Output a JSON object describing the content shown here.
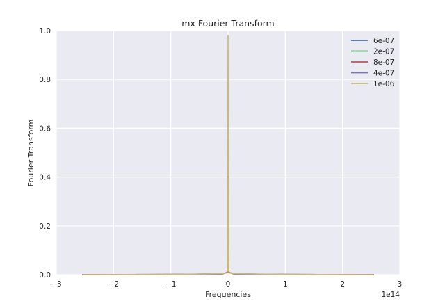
{
  "chart_data": {
    "type": "line",
    "title": "mx Fourier Transform",
    "xlabel": "Frequencies",
    "ylabel": "Fourier Transform",
    "x_offset_label": "1e14",
    "xlim": [
      -3,
      3
    ],
    "ylim": [
      0,
      1.0
    ],
    "x_scale_factor": "1e14",
    "xticks": [
      -3,
      -2,
      -1,
      0,
      1,
      2,
      3
    ],
    "xtick_labels": [
      "−3",
      "−2",
      "−1",
      "0",
      "1",
      "2",
      "3"
    ],
    "yticks": [
      0.0,
      0.2,
      0.4,
      0.6,
      0.8,
      1.0
    ],
    "ytick_labels": [
      "0.0",
      "0.2",
      "0.4",
      "0.6",
      "0.8",
      "1.0"
    ],
    "grid": true,
    "background": "#eaeaf2",
    "legend_position": "top-right",
    "series": [
      {
        "name": "6e-07",
        "color": "#4c72b0",
        "points": [
          [
            -2.55,
            0.0
          ],
          [
            -1.0,
            0.001
          ],
          [
            -0.1,
            0.003
          ],
          [
            -0.01,
            0.01
          ],
          [
            0.0,
            0.2
          ],
          [
            0.01,
            0.01
          ],
          [
            0.1,
            0.003
          ],
          [
            1.0,
            0.001
          ],
          [
            2.55,
            0.0
          ]
        ]
      },
      {
        "name": "2e-07",
        "color": "#55a868",
        "points": [
          [
            -2.55,
            0.0
          ],
          [
            -1.0,
            0.001
          ],
          [
            -0.1,
            0.003
          ],
          [
            -0.01,
            0.01
          ],
          [
            0.0,
            0.3
          ],
          [
            0.01,
            0.01
          ],
          [
            0.1,
            0.003
          ],
          [
            1.0,
            0.001
          ],
          [
            2.55,
            0.0
          ]
        ]
      },
      {
        "name": "8e-07",
        "color": "#c44e52",
        "points": [
          [
            -2.55,
            0.0
          ],
          [
            -1.0,
            0.001
          ],
          [
            -0.1,
            0.003
          ],
          [
            -0.01,
            0.01
          ],
          [
            0.0,
            0.5
          ],
          [
            0.01,
            0.01
          ],
          [
            0.1,
            0.003
          ],
          [
            1.0,
            0.001
          ],
          [
            2.55,
            0.0
          ]
        ]
      },
      {
        "name": "4e-07",
        "color": "#8172b2",
        "points": [
          [
            -2.55,
            0.0
          ],
          [
            -1.0,
            0.001
          ],
          [
            -0.1,
            0.003
          ],
          [
            -0.01,
            0.01
          ],
          [
            0.0,
            0.7
          ],
          [
            0.01,
            0.01
          ],
          [
            0.1,
            0.003
          ],
          [
            1.0,
            0.001
          ],
          [
            2.55,
            0.0
          ]
        ]
      },
      {
        "name": "1e-06",
        "color": "#ccb974",
        "points": [
          [
            -2.55,
            0.0
          ],
          [
            -1.0,
            0.001
          ],
          [
            -0.1,
            0.004
          ],
          [
            -0.02,
            0.008
          ],
          [
            -0.01,
            0.015
          ],
          [
            0.0,
            0.98
          ],
          [
            0.01,
            0.015
          ],
          [
            0.02,
            0.008
          ],
          [
            0.1,
            0.004
          ],
          [
            1.0,
            0.001
          ],
          [
            2.55,
            0.0
          ]
        ]
      }
    ]
  }
}
